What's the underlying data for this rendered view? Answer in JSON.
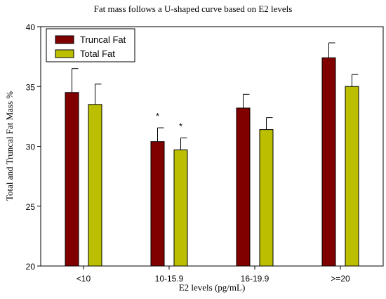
{
  "chart_data": {
    "type": "bar",
    "title": "Fat mass follows a U-shaped curve based on E2 levels",
    "xlabel": "E2 levels (pg/mL)",
    "ylabel": "Total and Truncal Fat Mass %",
    "categories": [
      "<10",
      "10-15.9",
      "16-19.9",
      ">=20"
    ],
    "ylim": [
      20,
      40
    ],
    "yticks": [
      20,
      25,
      30,
      35,
      40
    ],
    "series": [
      {
        "name": "Truncal Fat",
        "color": "#800000",
        "values": [
          34.5,
          30.4,
          33.2,
          37.4
        ],
        "errors": [
          2.0,
          1.15,
          1.15,
          1.25
        ],
        "annotations": [
          "",
          "*",
          "",
          ""
        ]
      },
      {
        "name": "Total Fat",
        "color": "#bcbf00",
        "values": [
          33.5,
          29.7,
          31.4,
          35.0
        ],
        "errors": [
          1.7,
          1.0,
          1.0,
          1.0
        ],
        "annotations": [
          "",
          "*",
          "",
          ""
        ]
      }
    ],
    "legend_position": "top-left",
    "grid": false
  }
}
